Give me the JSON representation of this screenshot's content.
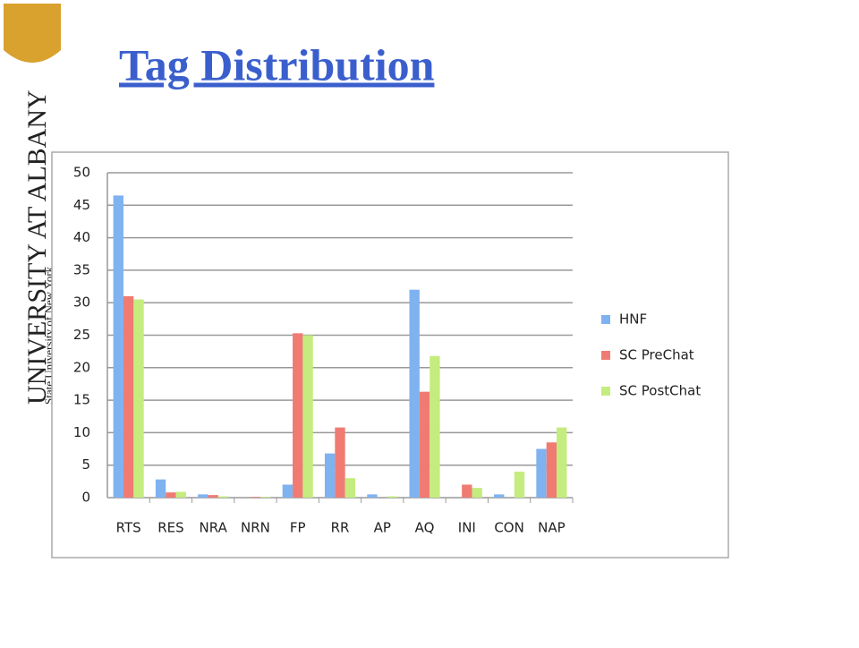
{
  "logo": {
    "name": "UNIVERSITY AT ALBANY",
    "subtitle": "State University of New York"
  },
  "chart_data": {
    "type": "bar",
    "title": "Tag Distribution",
    "categories": [
      "RTS",
      "RES",
      "NRA",
      "NRN",
      "FP",
      "RR",
      "AP",
      "AQ",
      "INI",
      "CON",
      "NAP"
    ],
    "series": [
      {
        "name": "HNF",
        "color": "#7fb2f0",
        "values": [
          46.5,
          2.8,
          0.5,
          0,
          2,
          6.8,
          0.5,
          32,
          0,
          0.5,
          7.5
        ]
      },
      {
        "name": "SC PreChat",
        "color": "#f07b73",
        "values": [
          31,
          0.8,
          0.4,
          0.1,
          25.3,
          10.8,
          0,
          16.3,
          2,
          0,
          8.5
        ]
      },
      {
        "name": "SC PostChat",
        "color": "#c4ec7e",
        "values": [
          30.5,
          0.9,
          0.2,
          0.1,
          25,
          3,
          0.2,
          21.8,
          1.5,
          4,
          10.8
        ]
      }
    ],
    "ylim": [
      0,
      50
    ],
    "yticks": [
      0,
      5,
      10,
      15,
      20,
      25,
      30,
      35,
      40,
      45,
      50
    ],
    "grid": true,
    "legend": "right"
  }
}
